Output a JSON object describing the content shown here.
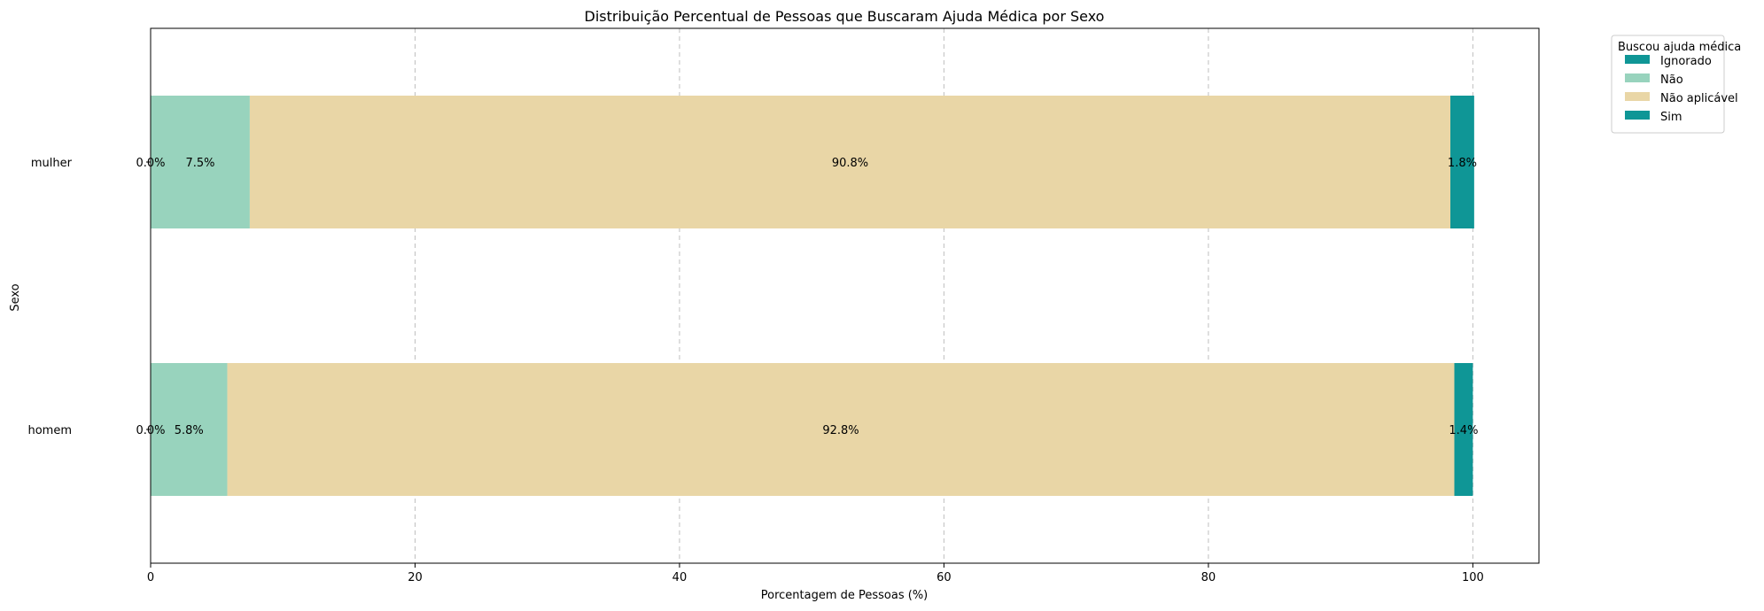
{
  "chart_data": {
    "type": "bar",
    "orientation": "horizontal",
    "stacked": true,
    "title": "Distribuição Percentual de Pessoas que Buscaram Ajuda Médica por Sexo",
    "xlabel": "Porcentagem de Pessoas (%)",
    "ylabel": "Sexo",
    "xlim": [
      0,
      105
    ],
    "xticks": [
      0,
      20,
      40,
      60,
      80,
      100
    ],
    "categories": [
      "mulher",
      "homem"
    ],
    "grid": "vertical dashed",
    "legend": {
      "title": "Buscou ajuda médica",
      "placement": "outside top-right"
    },
    "series": [
      {
        "name": "Ignorado",
        "color": "#0f9696",
        "values": [
          0.0,
          0.0
        ],
        "labels": [
          "0.0%",
          "0.0%"
        ]
      },
      {
        "name": "Não",
        "color": "#98d3bd",
        "values": [
          7.5,
          5.8
        ],
        "labels": [
          "7.5%",
          "5.8%"
        ]
      },
      {
        "name": "Não aplicável",
        "color": "#e9d6a6",
        "values": [
          90.8,
          92.8
        ],
        "labels": [
          "90.8%",
          "92.8%"
        ]
      },
      {
        "name": "Sim",
        "color": "#0f9696",
        "values": [
          1.8,
          1.4
        ],
        "labels": [
          "1.8%",
          "1.4%"
        ]
      }
    ]
  }
}
